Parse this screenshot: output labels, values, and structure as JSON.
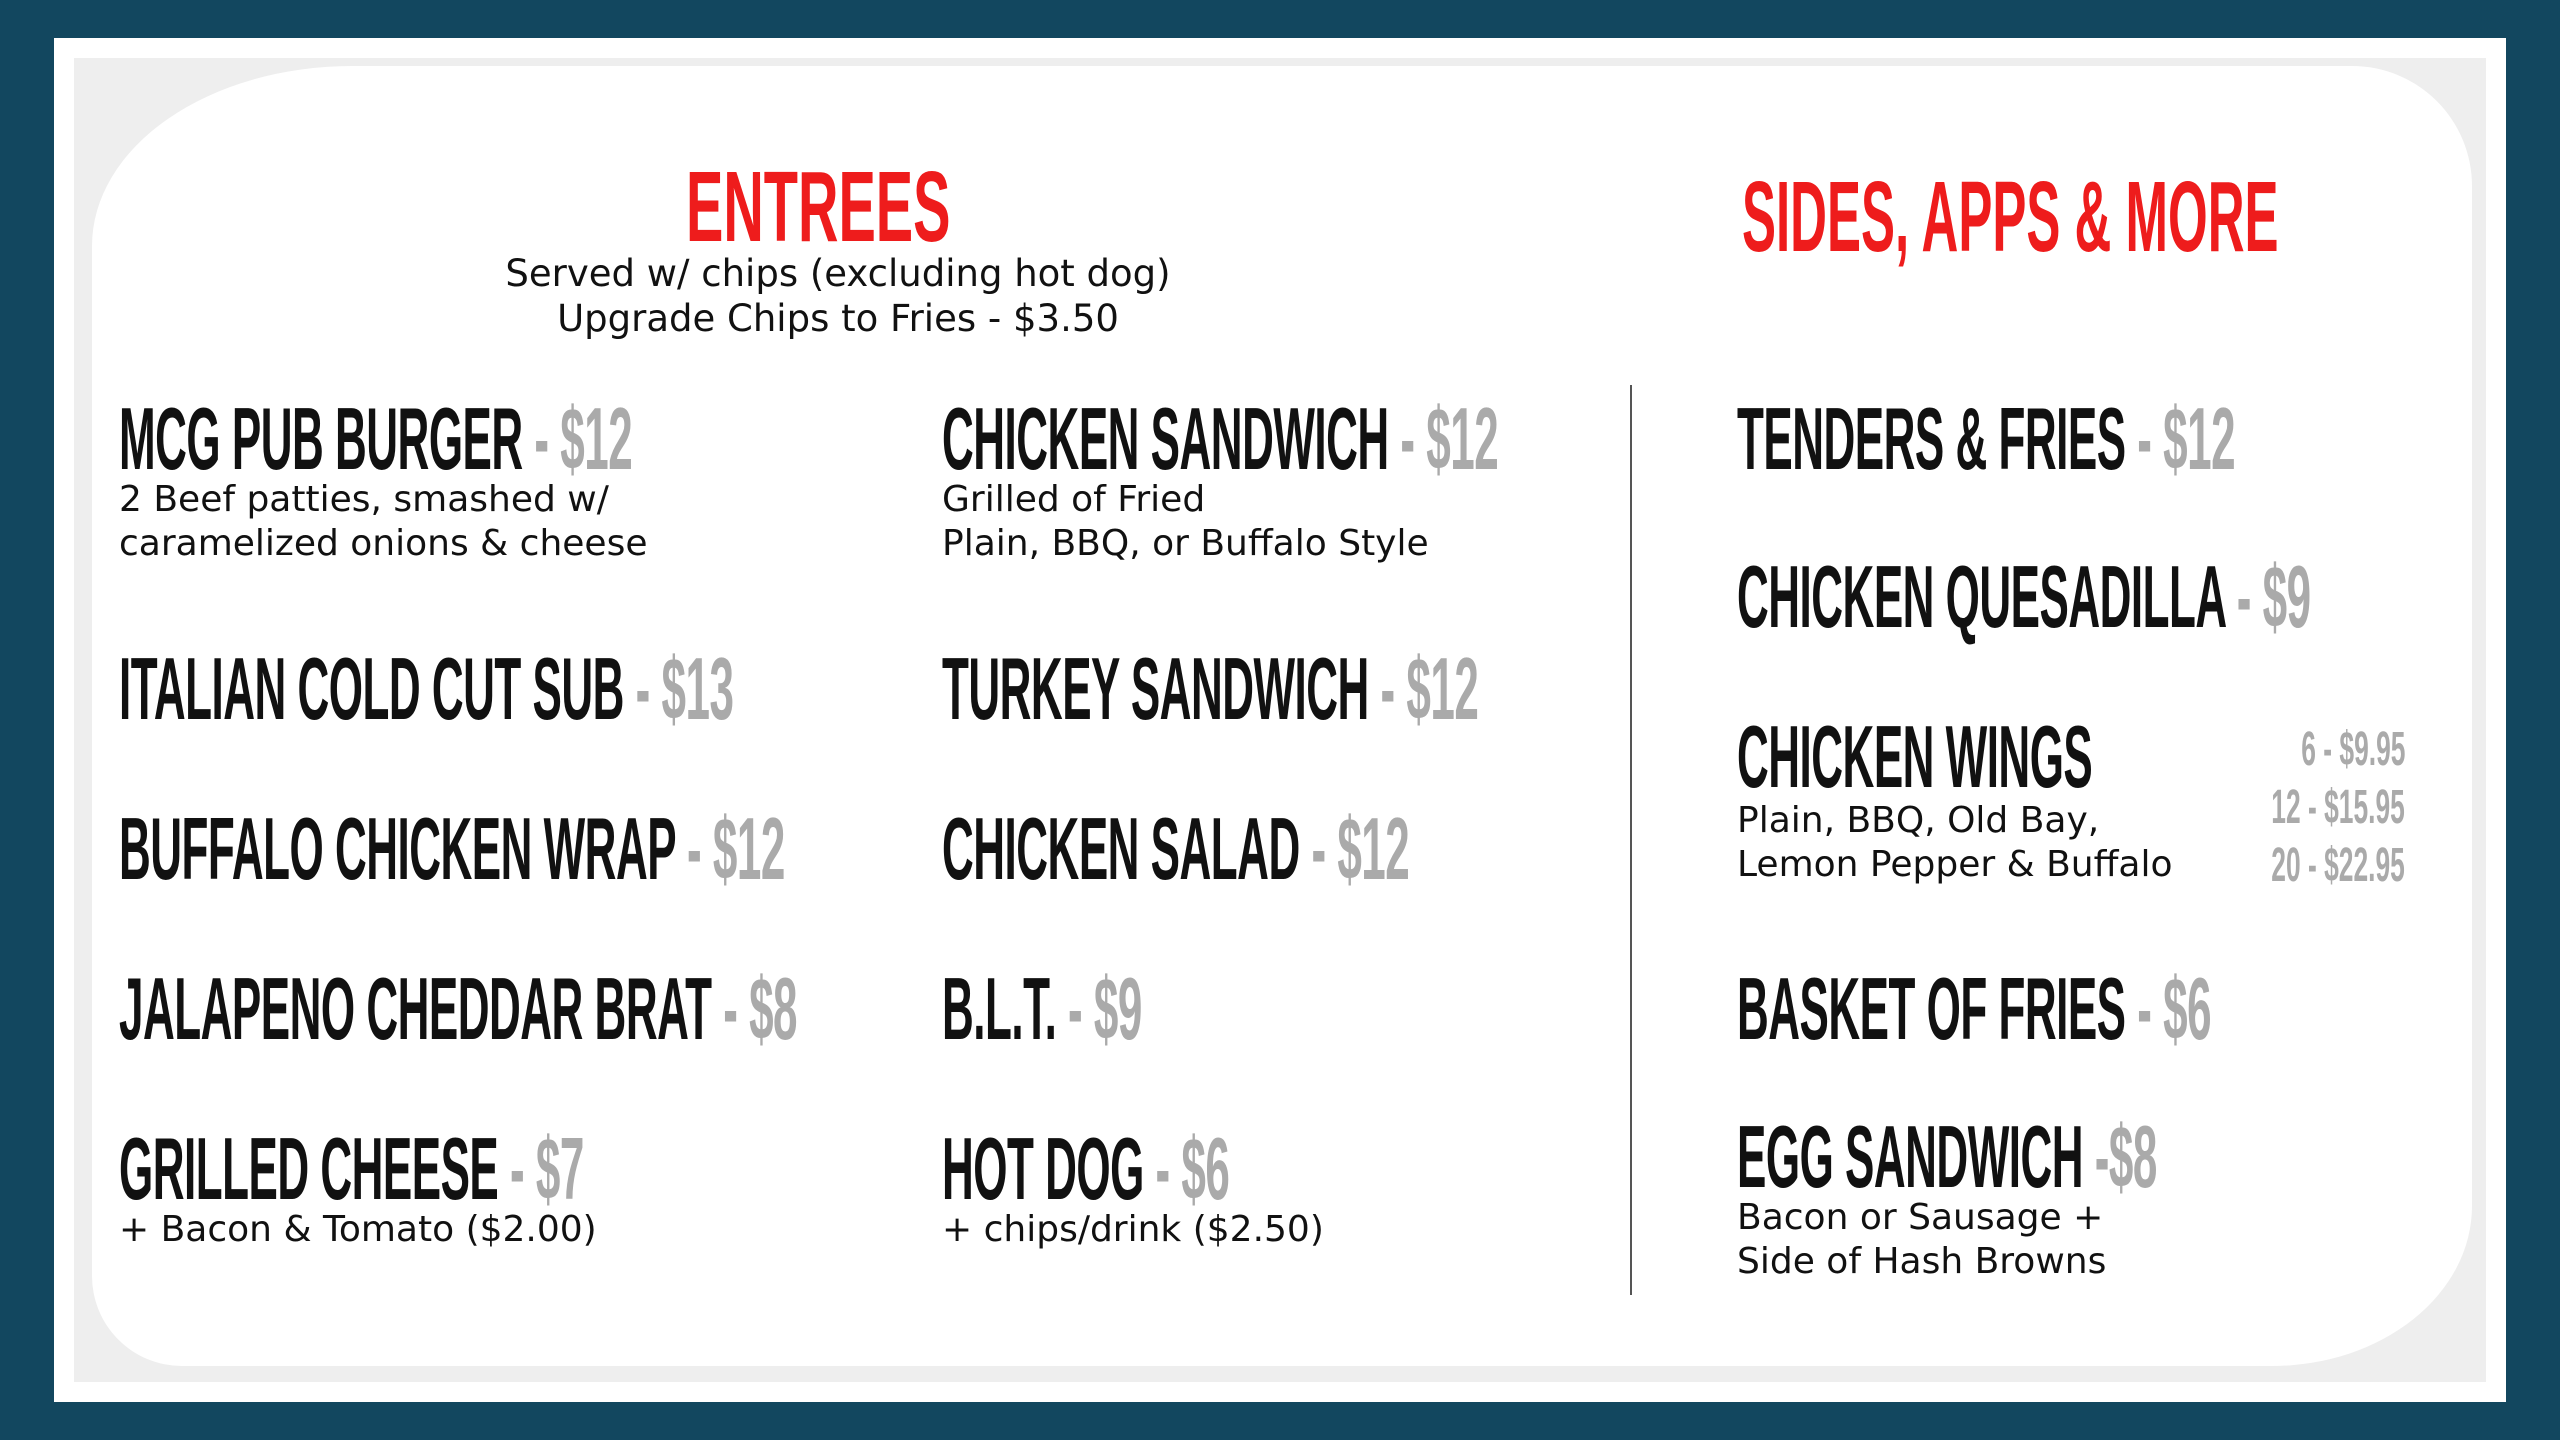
{
  "colors": {
    "border": "#12475f",
    "heading": "#ee1c1c",
    "price": "#aaaaaa",
    "text": "#111111"
  },
  "entrees": {
    "title": "ENTREES",
    "subtitle_1": "Served w/ chips (excluding hot dog)",
    "subtitle_2": "Upgrade Chips to Fries - $3.50",
    "items": [
      {
        "name": "MCG PUB BURGER",
        "price": "- $12",
        "desc_1": "2 Beef patties, smashed w/",
        "desc_2": "caramelized onions & cheese"
      },
      {
        "name": "ITALIAN COLD CUT SUB",
        "price": "- $13"
      },
      {
        "name": "BUFFALO CHICKEN WRAP",
        "price": "- $12"
      },
      {
        "name": "JALAPENO CHEDDAR BRAT",
        "price": "- $8"
      },
      {
        "name": "GRILLED CHEESE",
        "price": "- $7",
        "desc_1": "+ Bacon & Tomato ($2.00)"
      },
      {
        "name": "CHICKEN SANDWICH",
        "price": "- $12",
        "desc_1": "Grilled of Fried",
        "desc_2": "Plain, BBQ, or Buffalo Style"
      },
      {
        "name": "TURKEY SANDWICH",
        "price": "- $12"
      },
      {
        "name": "CHICKEN SALAD",
        "price": "- $12"
      },
      {
        "name": "B.L.T.",
        "price": "- $9"
      },
      {
        "name": "HOT DOG",
        "price": "- $6",
        "desc_1": "+ chips/drink ($2.50)"
      }
    ]
  },
  "sides": {
    "title": "SIDES, APPS & MORE",
    "items": [
      {
        "name": "TENDERS & FRIES",
        "price": "- $12"
      },
      {
        "name": "CHICKEN QUESADILLA",
        "price": "- $9"
      },
      {
        "name": "CHICKEN WINGS",
        "desc_1": "Plain, BBQ, Old Bay,",
        "desc_2": "Lemon Pepper & Buffalo",
        "prices": [
          "6 - $9.95",
          "12 - $15.95",
          "20 - $22.95"
        ]
      },
      {
        "name": "BASKET OF FRIES",
        "price": "- $6"
      },
      {
        "name": "EGG SANDWICH",
        "price": "-$8",
        "desc_1": "Bacon or Sausage +",
        "desc_2": "Side of Hash Browns"
      }
    ]
  }
}
